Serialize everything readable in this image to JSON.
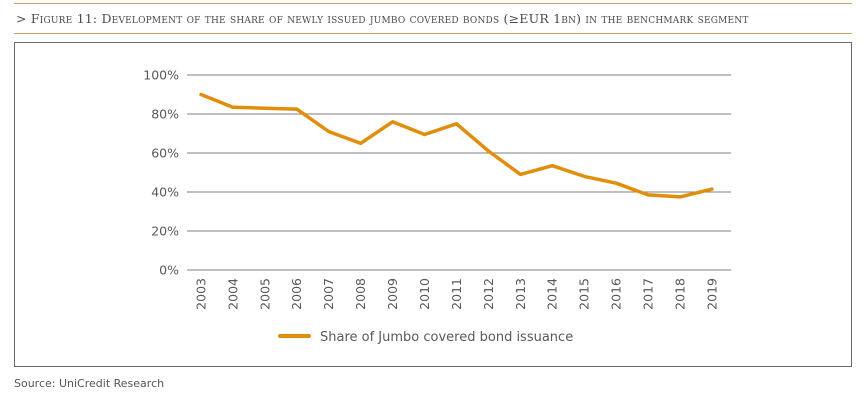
{
  "figure": {
    "title": "> Figure 11: Development of the share of newly issued jumbo covered bonds (≥EUR 1bn) in the benchmark segment",
    "source": "Source: UniCredit Research"
  },
  "colors": {
    "series": "#e08e0b",
    "rule": "#d4a45a",
    "grid": "#7f7f7f",
    "text": "#595959"
  },
  "chart_data": {
    "type": "line",
    "title": "",
    "xlabel": "",
    "ylabel": "",
    "x": [
      "2003",
      "2004",
      "2005",
      "2006",
      "2007",
      "2008",
      "2009",
      "2010",
      "2011",
      "2012",
      "2013",
      "2014",
      "2015",
      "2016",
      "2017",
      "2018",
      "2019"
    ],
    "series": [
      {
        "name": "Share of Jumbo covered bond issuance",
        "values": [
          90,
          83.5,
          83,
          82.5,
          71,
          65,
          76,
          69.5,
          75,
          61,
          49,
          53.5,
          48,
          44.5,
          38.5,
          37.5,
          41.5
        ]
      }
    ],
    "y_ticks": [
      "0%",
      "20%",
      "40%",
      "60%",
      "80%",
      "100%"
    ],
    "ylim": [
      0,
      100
    ],
    "grid": true,
    "legend_position": "bottom-center"
  }
}
